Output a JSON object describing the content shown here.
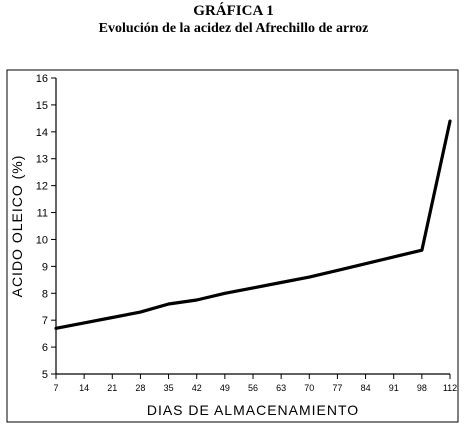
{
  "header": {
    "title": "GRÁFICA 1",
    "subtitle": "Evolución de la acidez del Afrechillo de arroz"
  },
  "chart_data": {
    "type": "line",
    "title": "GRÁFICA 1",
    "subtitle": "Evolución de la acidez del Afrechillo de arroz",
    "xlabel": "DIAS DE ALMACENAMIENTO",
    "ylabel": "ACIDO OLEICO (%)",
    "x": [
      7,
      14,
      21,
      28,
      35,
      42,
      49,
      56,
      63,
      70,
      77,
      84,
      91,
      98,
      112
    ],
    "x_tick_labels": [
      "7",
      "14",
      "21",
      "28",
      "35",
      "42",
      "49",
      "56",
      "63",
      "70",
      "77",
      "84",
      "91",
      "98",
      "112"
    ],
    "y_ticks": [
      5,
      6,
      7,
      8,
      9,
      10,
      11,
      12,
      13,
      14,
      15,
      16
    ],
    "ylim": [
      5,
      16
    ],
    "series": [
      {
        "values": [
          6.7,
          6.9,
          7.1,
          7.3,
          7.6,
          7.75,
          8.0,
          8.2,
          8.4,
          8.6,
          8.85,
          9.1,
          9.35,
          9.6,
          14.4
        ]
      }
    ],
    "grid": false,
    "legend": "none",
    "line_color": "#000000"
  }
}
